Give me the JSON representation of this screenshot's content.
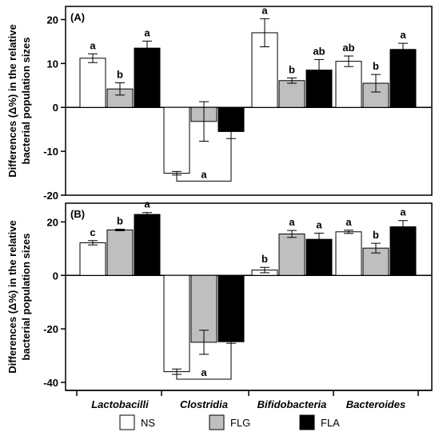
{
  "chart_data": {
    "type": "bar",
    "categories": [
      "Lactobacilli",
      "Clostridia",
      "Bifidobacteria",
      "Bacteroides"
    ],
    "legend": {
      "placement": "bottom",
      "entries": [
        {
          "name": "NS",
          "color": "#ffffff"
        },
        {
          "name": "FLG",
          "color": "#bfbfbf"
        },
        {
          "name": "FLA",
          "color": "#000000"
        }
      ]
    },
    "panels": [
      {
        "label": "(A)",
        "ylabel_lines": [
          "Differences (Δ%) in the relative",
          "bacterial population sizes"
        ],
        "ylim": [
          -20,
          23
        ],
        "yticks": [
          20,
          10,
          0,
          -10,
          -20
        ],
        "grid": false,
        "series": [
          {
            "name": "NS",
            "values": [
              11.2,
              -15.0,
              17.0,
              10.5
            ],
            "errors": [
              1.0,
              0.4,
              3.2,
              1.2
            ],
            "letters": [
              "a",
              "",
              "a",
              "ab"
            ]
          },
          {
            "name": "FLG",
            "values": [
              4.2,
              -3.2,
              6.1,
              5.5
            ],
            "errors": [
              1.4,
              4.5,
              0.6,
              2.0
            ],
            "letters": [
              "b",
              "",
              "b",
              "b"
            ]
          },
          {
            "name": "FLA",
            "values": [
              13.5,
              -5.5,
              8.5,
              13.2
            ],
            "errors": [
              1.6,
              1.6,
              2.4,
              1.4
            ],
            "letters": [
              "a",
              "",
              "ab",
              "a"
            ]
          }
        ],
        "bracket": {
          "category": "Clostridia",
          "from": "NS",
          "to": "FLA",
          "y": -16.8,
          "letter": "a"
        }
      },
      {
        "label": "(B)",
        "ylabel_lines": [
          "Differences (Δ%) in the relative",
          "bacterial population sizes"
        ],
        "ylim": [
          -43,
          27
        ],
        "yticks": [
          20,
          0,
          -20,
          -40
        ],
        "grid": false,
        "series": [
          {
            "name": "NS",
            "values": [
              12.2,
              -36.0,
              2.0,
              16.3
            ],
            "errors": [
              0.8,
              1.0,
              1.0,
              0.6
            ],
            "letters": [
              "c",
              "",
              "b",
              "a"
            ]
          },
          {
            "name": "FLG",
            "values": [
              17.0,
              -25.0,
              15.5,
              10.2
            ],
            "errors": [
              0.3,
              4.5,
              1.3,
              1.8
            ],
            "letters": [
              "b",
              "",
              "a",
              "b"
            ]
          },
          {
            "name": "FLA",
            "values": [
              22.8,
              -24.8,
              13.5,
              18.2
            ],
            "errors": [
              0.7,
              0.6,
              2.3,
              2.3
            ],
            "letters": [
              "a",
              "",
              "a",
              "a"
            ]
          }
        ],
        "bracket": {
          "category": "Clostridia",
          "from": "NS",
          "to": "FLA",
          "y": -38.8,
          "letter": "a"
        }
      }
    ]
  }
}
